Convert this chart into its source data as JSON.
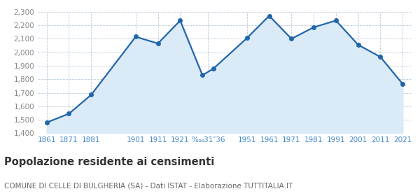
{
  "years": [
    1861,
    1871,
    1881,
    1901,
    1911,
    1921,
    1931,
    1936,
    1951,
    1961,
    1971,
    1981,
    1991,
    2001,
    2011,
    2021
  ],
  "population": [
    1480,
    1545,
    1685,
    2115,
    2065,
    2235,
    1830,
    1880,
    2105,
    2270,
    2100,
    2185,
    2235,
    2055,
    1965,
    1765
  ],
  "ylim": [
    1400,
    2300
  ],
  "yticks": [
    1400,
    1500,
    1600,
    1700,
    1800,
    1900,
    2000,
    2100,
    2200,
    2300
  ],
  "x_tick_positions": [
    1861,
    1871,
    1881,
    1901,
    1911,
    1921,
    1933.5,
    1951,
    1961,
    1971,
    1981,
    1991,
    2001,
    2011,
    2021
  ],
  "x_tick_labels": [
    "1861",
    "1871",
    "1881",
    "1901",
    "1911",
    "1921",
    "‱31″36",
    "1951",
    "1961",
    "1971",
    "1981",
    "1991",
    "2001",
    "2011",
    "2021"
  ],
  "xlim_left": 1857,
  "xlim_right": 2025,
  "line_color": "#2266aa",
  "fill_color": "#daeaf7",
  "marker_color": "#2266aa",
  "grid_color": "#bbccdd",
  "background_color": "#ffffff",
  "title": "Popolazione residente ai censimenti",
  "subtitle": "COMUNE DI CELLE DI BULGHERIA (SA) - Dati ISTAT - Elaborazione TUTTITALIA.IT",
  "title_fontsize": 10.5,
  "subtitle_fontsize": 7.5,
  "ytick_color": "#888888",
  "xtick_color": "#4488cc",
  "ytick_fontsize": 7.5,
  "xtick_fontsize": 7.5,
  "line_width": 1.6,
  "marker_size": 4
}
